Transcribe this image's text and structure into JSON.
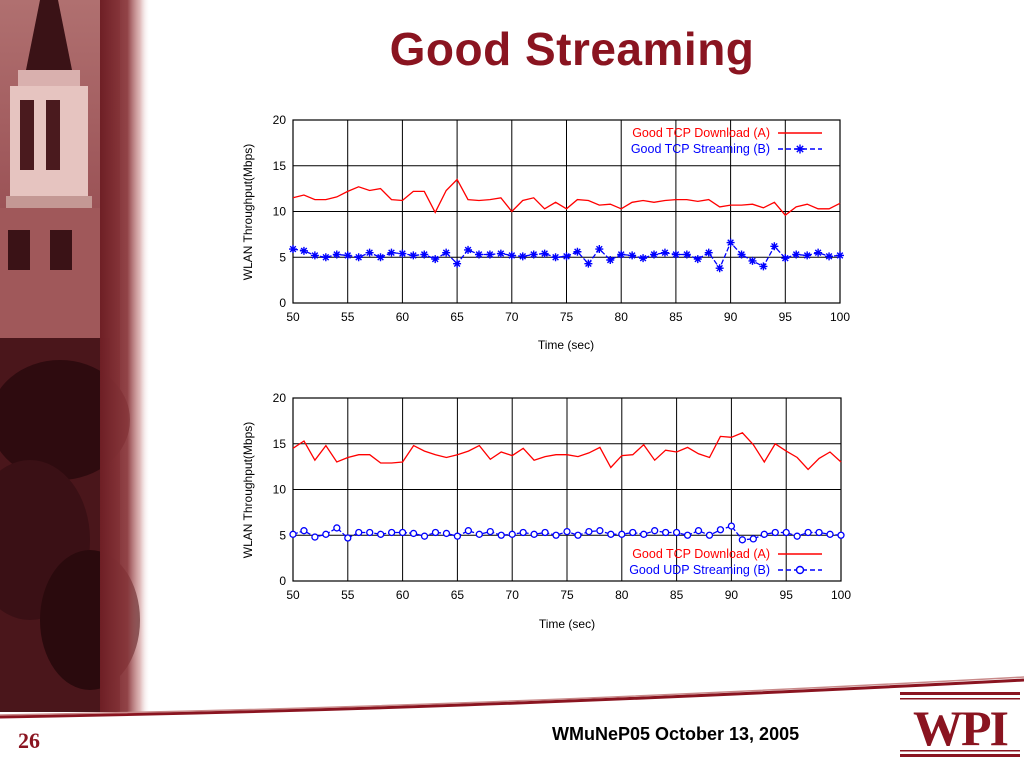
{
  "slide": {
    "title": "Good Streaming",
    "page_number": "26",
    "footer": "WMuNeP05 October 13, 2005",
    "logo_text": "WPI",
    "colors": {
      "title": "#8a1420",
      "tcp": "#ff0000",
      "streaming": "#0000ff",
      "brand": "#8a1420"
    }
  },
  "chart_data": [
    {
      "type": "line",
      "xlabel": "Time (sec)",
      "ylabel": "WLAN Throughput(Mbps)",
      "xlim": [
        50,
        100
      ],
      "ylim": [
        0,
        20
      ],
      "xticks": [
        50,
        55,
        60,
        65,
        70,
        75,
        80,
        85,
        90,
        95,
        100
      ],
      "yticks": [
        0,
        5,
        10,
        15,
        20
      ],
      "grid": true,
      "legend_position": "top-right",
      "series": [
        {
          "name": "Good TCP Download (A)",
          "marker": "none",
          "color": "#ff0000",
          "points": [
            [
              50,
              11.5
            ],
            [
              51,
              11.8
            ],
            [
              52,
              11.3
            ],
            [
              53,
              11.3
            ],
            [
              54,
              11.6
            ],
            [
              55,
              12.2
            ],
            [
              56,
              12.7
            ],
            [
              57,
              12.3
            ],
            [
              58,
              12.5
            ],
            [
              59,
              11.3
            ],
            [
              60,
              11.2
            ],
            [
              61,
              12.2
            ],
            [
              62,
              12.2
            ],
            [
              63,
              9.9
            ],
            [
              64,
              12.3
            ],
            [
              65,
              13.5
            ],
            [
              66,
              11.3
            ],
            [
              67,
              11.2
            ],
            [
              68,
              11.3
            ],
            [
              69,
              11.5
            ],
            [
              70,
              10.0
            ],
            [
              71,
              11.2
            ],
            [
              72,
              11.5
            ],
            [
              73,
              10.3
            ],
            [
              74,
              11.0
            ],
            [
              75,
              10.3
            ],
            [
              76,
              11.3
            ],
            [
              77,
              11.2
            ],
            [
              78,
              10.7
            ],
            [
              79,
              10.8
            ],
            [
              80,
              10.3
            ],
            [
              81,
              11.0
            ],
            [
              82,
              11.2
            ],
            [
              83,
              11.0
            ],
            [
              84,
              11.2
            ],
            [
              85,
              11.3
            ],
            [
              86,
              11.3
            ],
            [
              87,
              11.1
            ],
            [
              88,
              11.3
            ],
            [
              89,
              10.5
            ],
            [
              90,
              10.7
            ],
            [
              91,
              10.7
            ],
            [
              92,
              10.8
            ],
            [
              93,
              10.4
            ],
            [
              94,
              11.0
            ],
            [
              95,
              9.6
            ],
            [
              96,
              10.5
            ],
            [
              97,
              10.8
            ],
            [
              98,
              10.3
            ],
            [
              99,
              10.3
            ],
            [
              100,
              10.9
            ]
          ]
        },
        {
          "name": "Good TCP Streaming (B)",
          "marker": "star",
          "color": "#0000ff",
          "points": [
            [
              50,
              5.9
            ],
            [
              51,
              5.7
            ],
            [
              52,
              5.2
            ],
            [
              53,
              5.0
            ],
            [
              54,
              5.3
            ],
            [
              55,
              5.2
            ],
            [
              56,
              5.0
            ],
            [
              57,
              5.5
            ],
            [
              58,
              5.0
            ],
            [
              59,
              5.5
            ],
            [
              60,
              5.4
            ],
            [
              61,
              5.2
            ],
            [
              62,
              5.3
            ],
            [
              63,
              4.8
            ],
            [
              64,
              5.5
            ],
            [
              65,
              4.3
            ],
            [
              66,
              5.8
            ],
            [
              67,
              5.3
            ],
            [
              68,
              5.3
            ],
            [
              69,
              5.4
            ],
            [
              70,
              5.2
            ],
            [
              71,
              5.1
            ],
            [
              72,
              5.3
            ],
            [
              73,
              5.4
            ],
            [
              74,
              5.0
            ],
            [
              75,
              5.1
            ],
            [
              76,
              5.6
            ],
            [
              77,
              4.3
            ],
            [
              78,
              5.9
            ],
            [
              79,
              4.7
            ],
            [
              80,
              5.3
            ],
            [
              81,
              5.2
            ],
            [
              82,
              4.9
            ],
            [
              83,
              5.3
            ],
            [
              84,
              5.5
            ],
            [
              85,
              5.3
            ],
            [
              86,
              5.3
            ],
            [
              87,
              4.8
            ],
            [
              88,
              5.5
            ],
            [
              89,
              3.8
            ],
            [
              90,
              6.6
            ],
            [
              91,
              5.3
            ],
            [
              92,
              4.6
            ],
            [
              93,
              4.0
            ],
            [
              94,
              6.2
            ],
            [
              95,
              4.9
            ],
            [
              96,
              5.3
            ],
            [
              97,
              5.2
            ],
            [
              98,
              5.5
            ],
            [
              99,
              5.1
            ],
            [
              100,
              5.2
            ]
          ]
        }
      ]
    },
    {
      "type": "line",
      "xlabel": "Time (sec)",
      "ylabel": "WLAN Throughput(Mbps)",
      "xlim": [
        50,
        100
      ],
      "ylim": [
        0,
        20
      ],
      "xticks": [
        50,
        55,
        60,
        65,
        70,
        75,
        80,
        85,
        90,
        95,
        100
      ],
      "yticks": [
        0,
        5,
        10,
        15,
        20
      ],
      "grid": true,
      "legend_position": "bottom-right",
      "series": [
        {
          "name": "Good TCP Download (A)",
          "marker": "none",
          "color": "#ff0000",
          "points": [
            [
              50,
              14.5
            ],
            [
              51,
              15.3
            ],
            [
              52,
              13.2
            ],
            [
              53,
              14.8
            ],
            [
              54,
              13.0
            ],
            [
              55,
              13.5
            ],
            [
              56,
              13.8
            ],
            [
              57,
              13.8
            ],
            [
              58,
              12.9
            ],
            [
              59,
              12.9
            ],
            [
              60,
              13.0
            ],
            [
              61,
              14.8
            ],
            [
              62,
              14.2
            ],
            [
              63,
              13.8
            ],
            [
              64,
              13.5
            ],
            [
              65,
              13.8
            ],
            [
              66,
              14.2
            ],
            [
              67,
              14.8
            ],
            [
              68,
              13.3
            ],
            [
              69,
              14.1
            ],
            [
              70,
              13.7
            ],
            [
              71,
              14.5
            ],
            [
              72,
              13.2
            ],
            [
              73,
              13.6
            ],
            [
              74,
              13.8
            ],
            [
              75,
              13.8
            ],
            [
              76,
              13.6
            ],
            [
              77,
              14.0
            ],
            [
              78,
              14.6
            ],
            [
              79,
              12.4
            ],
            [
              80,
              13.7
            ],
            [
              81,
              13.8
            ],
            [
              82,
              14.9
            ],
            [
              83,
              13.2
            ],
            [
              84,
              14.3
            ],
            [
              85,
              14.1
            ],
            [
              86,
              14.6
            ],
            [
              87,
              13.9
            ],
            [
              88,
              13.5
            ],
            [
              89,
              15.8
            ],
            [
              90,
              15.7
            ],
            [
              91,
              16.2
            ],
            [
              92,
              14.9
            ],
            [
              93,
              13.0
            ],
            [
              94,
              15.0
            ],
            [
              95,
              14.2
            ],
            [
              96,
              13.5
            ],
            [
              97,
              12.2
            ],
            [
              98,
              13.4
            ],
            [
              99,
              14.1
            ],
            [
              100,
              13.0
            ]
          ]
        },
        {
          "name": "Good UDP Streaming (B)",
          "marker": "circle",
          "color": "#0000ff",
          "points": [
            [
              50,
              5.1
            ],
            [
              51,
              5.5
            ],
            [
              52,
              4.8
            ],
            [
              53,
              5.1
            ],
            [
              54,
              5.8
            ],
            [
              55,
              4.7
            ],
            [
              56,
              5.3
            ],
            [
              57,
              5.3
            ],
            [
              58,
              5.1
            ],
            [
              59,
              5.3
            ],
            [
              60,
              5.3
            ],
            [
              61,
              5.2
            ],
            [
              62,
              4.9
            ],
            [
              63,
              5.3
            ],
            [
              64,
              5.2
            ],
            [
              65,
              4.9
            ],
            [
              66,
              5.5
            ],
            [
              67,
              5.1
            ],
            [
              68,
              5.4
            ],
            [
              69,
              5.0
            ],
            [
              70,
              5.1
            ],
            [
              71,
              5.3
            ],
            [
              72,
              5.1
            ],
            [
              73,
              5.3
            ],
            [
              74,
              5.0
            ],
            [
              75,
              5.4
            ],
            [
              76,
              5.0
            ],
            [
              77,
              5.4
            ],
            [
              78,
              5.5
            ],
            [
              79,
              5.1
            ],
            [
              80,
              5.1
            ],
            [
              81,
              5.3
            ],
            [
              82,
              5.1
            ],
            [
              83,
              5.5
            ],
            [
              84,
              5.3
            ],
            [
              85,
              5.3
            ],
            [
              86,
              5.0
            ],
            [
              87,
              5.5
            ],
            [
              88,
              5.0
            ],
            [
              89,
              5.6
            ],
            [
              90,
              6.0
            ],
            [
              91,
              4.5
            ],
            [
              92,
              4.6
            ],
            [
              93,
              5.1
            ],
            [
              94,
              5.3
            ],
            [
              95,
              5.3
            ],
            [
              96,
              4.9
            ],
            [
              97,
              5.3
            ],
            [
              98,
              5.3
            ],
            [
              99,
              5.1
            ],
            [
              100,
              5.0
            ]
          ]
        }
      ]
    }
  ]
}
